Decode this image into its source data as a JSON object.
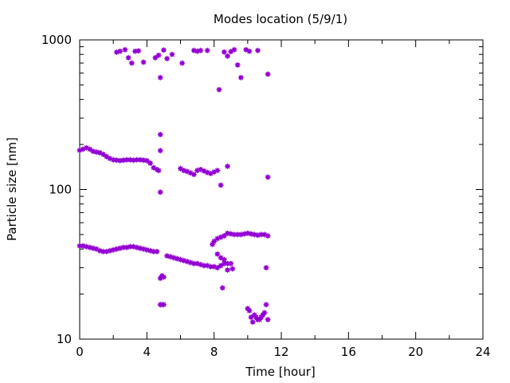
{
  "chart_data": {
    "type": "scatter",
    "title": "Modes location (5/9/1)",
    "xlabel": "Time [hour]",
    "ylabel": "Particle size [nm]",
    "xlim": [
      0,
      24
    ],
    "ylim": [
      10,
      1000
    ],
    "y_scale": "log",
    "x_ticks": [
      0,
      4,
      8,
      12,
      16,
      20,
      24
    ],
    "x_tick_labels": [
      "0",
      "4",
      "8",
      "12",
      "16",
      "20",
      "24"
    ],
    "y_ticks": [
      10,
      100,
      1000
    ],
    "y_tick_labels": [
      "10",
      "100",
      "1000"
    ],
    "grid": false,
    "marker_color": "#9400D3",
    "series": [
      {
        "points": [
          [
            0.0,
            42
          ],
          [
            0.2,
            42
          ],
          [
            0.4,
            41.5
          ],
          [
            0.6,
            41
          ],
          [
            0.8,
            40.5
          ],
          [
            1.0,
            40
          ],
          [
            1.2,
            39
          ],
          [
            1.4,
            38.5
          ],
          [
            1.6,
            38.5
          ],
          [
            1.8,
            39
          ],
          [
            2.0,
            39.5
          ],
          [
            2.2,
            40
          ],
          [
            2.4,
            40.5
          ],
          [
            2.6,
            41
          ],
          [
            2.8,
            41
          ],
          [
            3.0,
            41.5
          ],
          [
            3.2,
            41.5
          ],
          [
            3.4,
            41
          ],
          [
            3.6,
            40.5
          ],
          [
            3.8,
            40
          ],
          [
            4.0,
            39.5
          ],
          [
            4.2,
            39
          ],
          [
            4.4,
            38.5
          ],
          [
            4.6,
            38.5
          ],
          [
            5.2,
            36
          ],
          [
            5.4,
            35.5
          ],
          [
            5.6,
            35
          ],
          [
            5.8,
            34.5
          ],
          [
            6.0,
            34
          ],
          [
            6.2,
            33.5
          ],
          [
            6.4,
            33
          ],
          [
            6.6,
            32.5
          ],
          [
            6.8,
            32
          ],
          [
            7.0,
            32
          ],
          [
            7.2,
            31.5
          ],
          [
            7.4,
            31
          ],
          [
            7.6,
            31
          ],
          [
            7.8,
            30.5
          ],
          [
            8.0,
            30.5
          ],
          [
            8.2,
            30
          ],
          [
            8.4,
            31
          ],
          [
            8.6,
            32
          ],
          [
            8.8,
            32
          ],
          [
            9.0,
            32
          ],
          [
            7.9,
            43
          ],
          [
            8.0,
            45
          ],
          [
            8.2,
            47
          ],
          [
            8.4,
            48
          ],
          [
            8.6,
            49
          ],
          [
            8.8,
            51
          ],
          [
            9.0,
            50.5
          ],
          [
            9.2,
            50
          ],
          [
            9.4,
            50
          ],
          [
            9.6,
            50
          ],
          [
            9.8,
            50.5
          ],
          [
            10.0,
            51
          ],
          [
            10.2,
            50.5
          ],
          [
            10.4,
            50
          ],
          [
            10.6,
            49.5
          ],
          [
            10.8,
            50
          ],
          [
            11.0,
            50
          ],
          [
            11.2,
            49
          ],
          [
            8.2,
            37
          ],
          [
            8.4,
            35
          ],
          [
            8.6,
            34
          ],
          [
            8.8,
            29
          ],
          [
            9.1,
            29.5
          ],
          [
            4.8,
            25.5
          ],
          [
            4.9,
            26.5
          ],
          [
            5.0,
            26
          ],
          [
            4.8,
            17
          ],
          [
            4.9,
            17
          ],
          [
            5.0,
            17
          ],
          [
            8.5,
            22
          ],
          [
            11.1,
            30
          ],
          [
            10.0,
            16
          ],
          [
            10.1,
            15.5
          ],
          [
            10.2,
            14
          ],
          [
            10.3,
            13
          ],
          [
            10.4,
            14.5
          ],
          [
            10.5,
            14
          ],
          [
            10.6,
            13.5
          ],
          [
            10.7,
            13.5
          ],
          [
            10.8,
            14
          ],
          [
            10.9,
            14.5
          ],
          [
            11.0,
            15
          ],
          [
            11.1,
            17
          ],
          [
            11.2,
            13.5
          ],
          [
            0.0,
            183
          ],
          [
            0.2,
            186
          ],
          [
            0.4,
            190
          ],
          [
            0.6,
            186
          ],
          [
            0.8,
            180
          ],
          [
            1.0,
            178
          ],
          [
            1.2,
            176
          ],
          [
            1.4,
            172
          ],
          [
            1.6,
            166
          ],
          [
            1.8,
            161
          ],
          [
            2.0,
            158
          ],
          [
            2.2,
            157
          ],
          [
            2.4,
            156
          ],
          [
            2.6,
            157
          ],
          [
            2.8,
            158
          ],
          [
            3.0,
            158
          ],
          [
            3.2,
            157
          ],
          [
            3.4,
            158
          ],
          [
            3.6,
            158
          ],
          [
            3.8,
            157
          ],
          [
            4.0,
            156
          ],
          [
            4.2,
            150
          ],
          [
            4.4,
            140
          ],
          [
            4.6,
            136
          ],
          [
            4.7,
            134
          ],
          [
            4.8,
            233
          ],
          [
            4.8,
            182
          ],
          [
            4.8,
            96
          ],
          [
            6.0,
            138
          ],
          [
            6.2,
            134
          ],
          [
            6.4,
            132
          ],
          [
            6.6,
            129
          ],
          [
            6.8,
            126
          ],
          [
            7.0,
            134
          ],
          [
            7.2,
            136
          ],
          [
            7.4,
            133
          ],
          [
            7.6,
            130
          ],
          [
            7.8,
            128
          ],
          [
            8.0,
            131
          ],
          [
            8.2,
            134
          ],
          [
            8.4,
            107
          ],
          [
            8.8,
            143
          ],
          [
            11.2,
            121
          ],
          [
            2.2,
            828
          ],
          [
            2.4,
            840
          ],
          [
            2.7,
            860
          ],
          [
            2.9,
            760
          ],
          [
            3.1,
            700
          ],
          [
            3.3,
            840
          ],
          [
            3.5,
            845
          ],
          [
            3.8,
            710
          ],
          [
            4.5,
            760
          ],
          [
            4.7,
            790
          ],
          [
            4.8,
            560
          ],
          [
            5.0,
            855
          ],
          [
            5.2,
            750
          ],
          [
            5.5,
            800
          ],
          [
            6.1,
            700
          ],
          [
            6.8,
            850
          ],
          [
            7.0,
            840
          ],
          [
            7.2,
            850
          ],
          [
            7.6,
            850
          ],
          [
            8.3,
            465
          ],
          [
            8.6,
            830
          ],
          [
            8.8,
            780
          ],
          [
            9.0,
            835
          ],
          [
            9.2,
            860
          ],
          [
            9.4,
            680
          ],
          [
            9.6,
            560
          ],
          [
            9.9,
            860
          ],
          [
            10.1,
            840
          ],
          [
            10.6,
            850
          ],
          [
            11.2,
            590
          ]
        ]
      }
    ]
  }
}
